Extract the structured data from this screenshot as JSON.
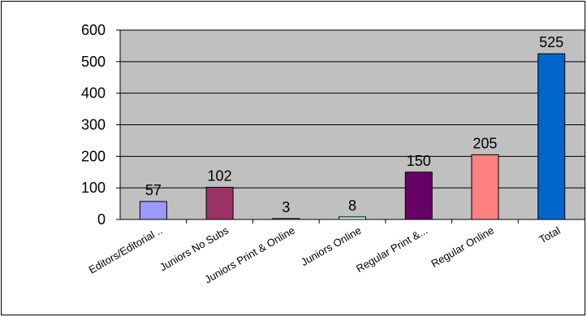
{
  "chart_data": {
    "type": "bar",
    "title": "",
    "xlabel": "",
    "ylabel": "",
    "categories": [
      "Editors/Editorial ..",
      "Juniors No Subs",
      "Juniors Print & Online",
      "Juniors Online",
      "Regular Print &...",
      "Regular Online",
      "Total"
    ],
    "values": [
      57,
      102,
      3,
      8,
      150,
      205,
      525
    ],
    "data_labels": [
      "57",
      "102",
      "3",
      "8",
      "150",
      "205",
      "525"
    ],
    "colors": [
      "#9999ff",
      "#993366",
      "#ffffcc",
      "#ccffff",
      "#660066",
      "#ff8080",
      "#0066cc"
    ],
    "ylim": [
      0,
      600
    ],
    "yticks": [
      0,
      100,
      200,
      300,
      400,
      500,
      600
    ],
    "ytick_labels": [
      "0",
      "100",
      "200",
      "300",
      "400",
      "500",
      "600"
    ],
    "grid": true,
    "legend": false,
    "plot_background": "#c0c0c0"
  }
}
